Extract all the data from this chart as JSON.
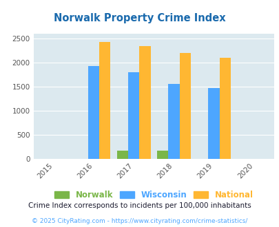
{
  "title": "Norwalk Property Crime Index",
  "years": [
    2015,
    2016,
    2017,
    2018,
    2019,
    2020
  ],
  "bar_years": [
    2016,
    2017,
    2018,
    2019
  ],
  "norwalk": [
    0,
    170,
    175,
    0
  ],
  "wisconsin": [
    1930,
    1800,
    1555,
    1480
  ],
  "national": [
    2440,
    2350,
    2200,
    2100
  ],
  "norwalk_color": "#7ab648",
  "wisconsin_color": "#4da6ff",
  "national_color": "#ffb732",
  "bg_color": "#dce9ef",
  "title_color": "#1a6aad",
  "xlim": [
    2014.5,
    2020.5
  ],
  "ylim": [
    0,
    2600
  ],
  "yticks": [
    0,
    500,
    1000,
    1500,
    2000,
    2500
  ],
  "bar_width": 0.28,
  "legend_labels": [
    "Norwalk",
    "Wisconsin",
    "National"
  ],
  "legend_colors": [
    "#7ab648",
    "#4da6ff",
    "#ffb732"
  ],
  "footnote1": "Crime Index corresponds to incidents per 100,000 inhabitants",
  "footnote2": "© 2025 CityRating.com - https://www.cityrating.com/crime-statistics/"
}
